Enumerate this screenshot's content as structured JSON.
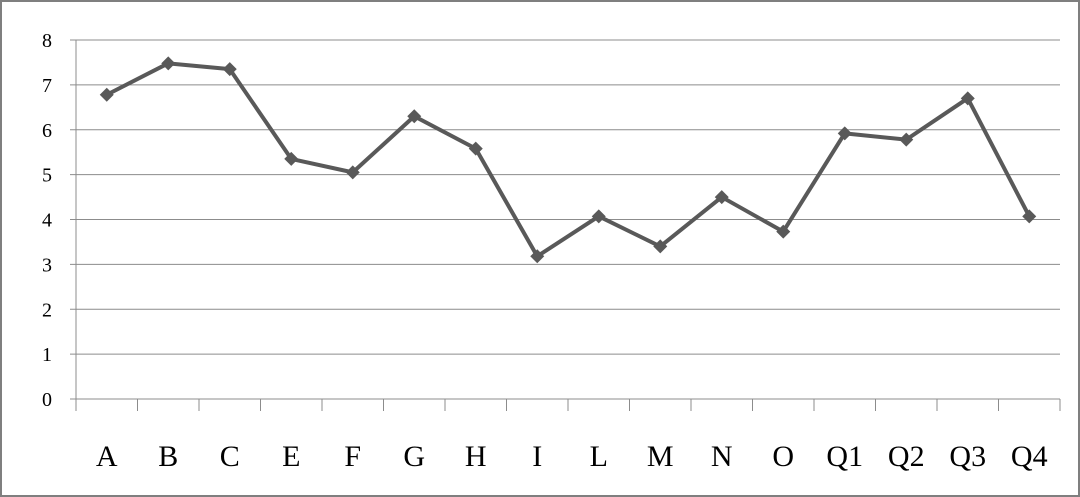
{
  "chart_data": {
    "type": "line",
    "categories": [
      "A",
      "B",
      "C",
      "E",
      "F",
      "G",
      "H",
      "I",
      "L",
      "M",
      "N",
      "O",
      "Q1",
      "Q2",
      "Q3",
      "Q4"
    ],
    "series": [
      {
        "values": [
          6.78,
          7.48,
          7.35,
          5.35,
          5.05,
          6.3,
          5.58,
          3.18,
          4.07,
          3.4,
          4.5,
          3.73,
          5.92,
          5.78,
          6.7,
          4.07
        ],
        "color": "#595959",
        "marker": "diamond"
      }
    ],
    "yticks": [
      "0",
      "1",
      "2",
      "3",
      "4",
      "5",
      "6",
      "7",
      "8"
    ],
    "ylim": [
      0,
      8
    ],
    "grid": true,
    "legend": "none",
    "title": "",
    "xlabel": "",
    "ylabel": ""
  }
}
